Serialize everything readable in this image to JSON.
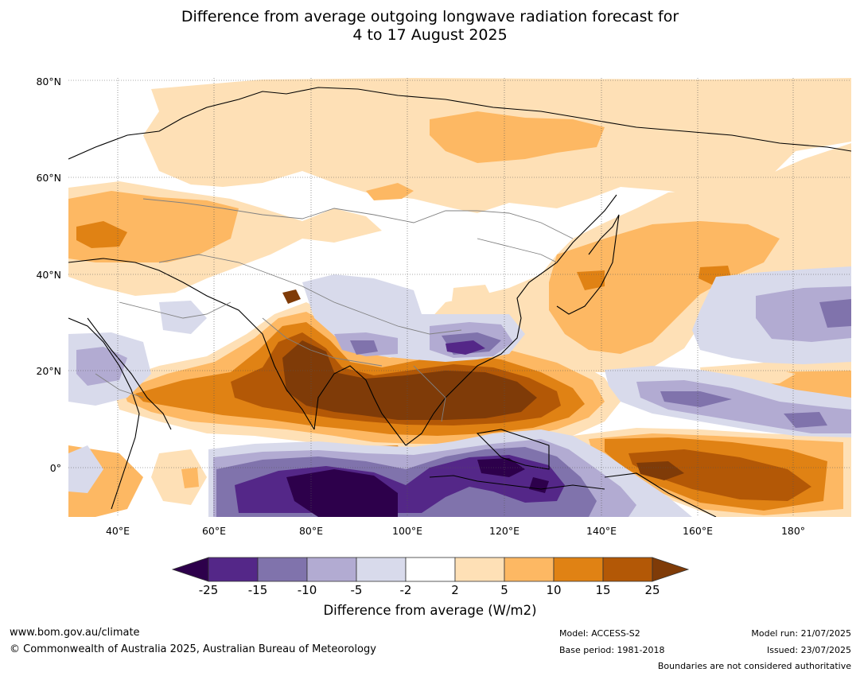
{
  "title": {
    "line1": "Difference from average outgoing longwave radiation forecast for",
    "line2": "4 to 17 August 2025"
  },
  "map": {
    "lat_labels": [
      "80°N",
      "60°N",
      "40°N",
      "20°N",
      "0°"
    ],
    "lon_labels": [
      "40°E",
      "60°E",
      "80°E",
      "100°E",
      "120°E",
      "140°E",
      "160°E",
      "180°"
    ],
    "extent": {
      "lon": [
        30,
        190
      ],
      "lat": [
        -10,
        81
      ]
    }
  },
  "colorbar": {
    "ticks": [
      "-25",
      "-15",
      "-10",
      "-5",
      "-2",
      "2",
      "5",
      "10",
      "15",
      "25"
    ],
    "label": "Difference from average (W/m2)",
    "colors": {
      "under": "#2d004b",
      "bins": [
        "#542788",
        "#8073ac",
        "#b2abd2",
        "#d8daeb",
        "#ffffff",
        "#fee0b6",
        "#fdb863",
        "#e08214",
        "#b35806"
      ],
      "over": "#7f3b08"
    }
  },
  "footer": {
    "website": "www.bom.gov.au/climate",
    "copyright": "© Commonwealth of Australia 2025, Australian Bureau of Meteorology",
    "model": "Model: ACCESS-S2",
    "base_period": "Base period: 1981-2018",
    "model_run": "Model run: 21/07/2025",
    "issued": "Issued: 23/07/2025",
    "disclaimer": "Boundaries are not considered authoritative"
  }
}
